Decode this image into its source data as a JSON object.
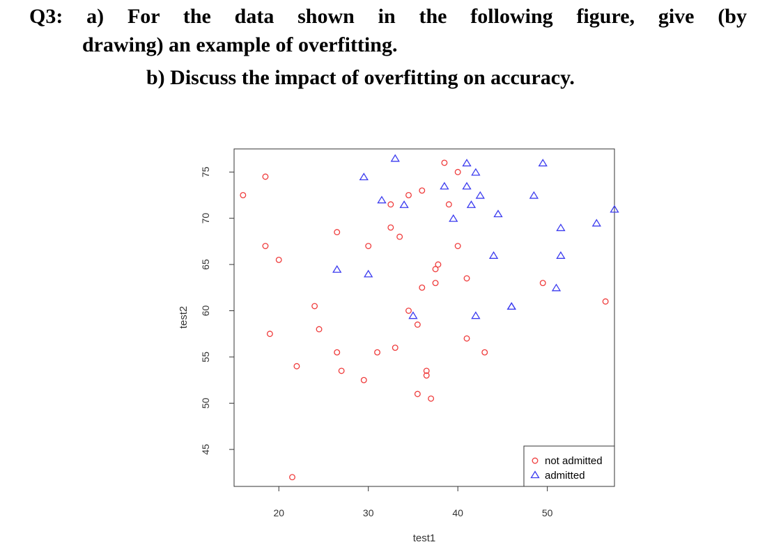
{
  "question": {
    "line1": "Q3: a) For the data shown in the following figure, give (by",
    "line2": "drawing) an example of overfitting.",
    "line3": "b) Discuss the impact of overfitting on accuracy."
  },
  "colors": {
    "not_admitted": "#ef3b3b",
    "admitted": "#3b3bef"
  },
  "chart_data": {
    "type": "scatter",
    "xlabel": "test1",
    "ylabel": "test2",
    "xlim": [
      15,
      57.5
    ],
    "ylim": [
      41,
      77.5
    ],
    "xticks": [
      20,
      30,
      40,
      50
    ],
    "yticks": [
      45,
      50,
      55,
      60,
      65,
      70,
      75
    ],
    "legend_position": "bottom-right",
    "series": [
      {
        "name": "not admitted",
        "marker": "circle",
        "color": "#ef3b3b",
        "points": [
          [
            16,
            72.5
          ],
          [
            18.5,
            74.5
          ],
          [
            18.5,
            67
          ],
          [
            20,
            65.5
          ],
          [
            19,
            57.5
          ],
          [
            22,
            54
          ],
          [
            21.5,
            42
          ],
          [
            24,
            60.5
          ],
          [
            24.5,
            58
          ],
          [
            26.5,
            68.5
          ],
          [
            26.5,
            55.5
          ],
          [
            27,
            53.5
          ],
          [
            29.5,
            52.5
          ],
          [
            30,
            67
          ],
          [
            31,
            55.5
          ],
          [
            32.5,
            71.5
          ],
          [
            32.5,
            69
          ],
          [
            33.5,
            68
          ],
          [
            33,
            56
          ],
          [
            34.5,
            72.5
          ],
          [
            34.5,
            60
          ],
          [
            35.5,
            58.5
          ],
          [
            35.5,
            51
          ],
          [
            36,
            73
          ],
          [
            36,
            62.5
          ],
          [
            36.5,
            53.5
          ],
          [
            36.5,
            53
          ],
          [
            37,
            50.5
          ],
          [
            37.5,
            64.5
          ],
          [
            37.5,
            63
          ],
          [
            37.8,
            65
          ],
          [
            38.5,
            76
          ],
          [
            39,
            71.5
          ],
          [
            40,
            75
          ],
          [
            40,
            67
          ],
          [
            41,
            63.5
          ],
          [
            41,
            57
          ],
          [
            43,
            55.5
          ],
          [
            49.5,
            63
          ],
          [
            56.5,
            61
          ]
        ]
      },
      {
        "name": "admitted",
        "marker": "triangle",
        "color": "#3b3bef",
        "points": [
          [
            29.5,
            74.5
          ],
          [
            33,
            76.5
          ],
          [
            31.5,
            72
          ],
          [
            34,
            71.5
          ],
          [
            26.5,
            64.5
          ],
          [
            30,
            64
          ],
          [
            35,
            59.5
          ],
          [
            38.5,
            73.5
          ],
          [
            39.5,
            70
          ],
          [
            41,
            76
          ],
          [
            41,
            73.5
          ],
          [
            42,
            75
          ],
          [
            41.5,
            71.5
          ],
          [
            42.5,
            72.5
          ],
          [
            44.5,
            70.5
          ],
          [
            44,
            66
          ],
          [
            42,
            59.5
          ],
          [
            46,
            60.5
          ],
          [
            46,
            60.5
          ],
          [
            48.5,
            72.5
          ],
          [
            49.5,
            76
          ],
          [
            51.5,
            69
          ],
          [
            51.5,
            66
          ],
          [
            51,
            62.5
          ],
          [
            55.5,
            69.5
          ],
          [
            57.5,
            71
          ]
        ]
      }
    ]
  }
}
